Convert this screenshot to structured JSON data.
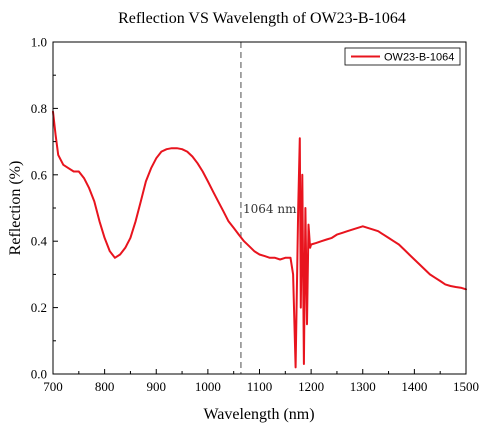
{
  "chart_data": {
    "type": "line",
    "title": "Reflection VS Wavelength of OW23-B-1064",
    "xlabel": "Wavelength (nm)",
    "ylabel": "Reflection (%)",
    "xlim": [
      700,
      1500
    ],
    "ylim": [
      0.0,
      1.0
    ],
    "xticks": [
      700,
      800,
      900,
      1000,
      1100,
      1200,
      1300,
      1400,
      1500
    ],
    "xtick_labels": [
      "700",
      "800",
      "900",
      "1000",
      "1100",
      "1200",
      "1300",
      "1400",
      "1500"
    ],
    "yticks": [
      0.0,
      0.2,
      0.4,
      0.6,
      0.8,
      1.0
    ],
    "ytick_labels": [
      "0.0",
      "0.2",
      "0.4",
      "0.6",
      "0.8",
      "1.0"
    ],
    "grid": false,
    "legend_position": "top-right",
    "reference_line": {
      "x": 1064,
      "style": "dashed",
      "color": "#808080"
    },
    "annotation": {
      "text": "1064 nm",
      "x": 1064,
      "y": 0.5
    },
    "series": [
      {
        "name": "OW23-B-1064",
        "color": "#e8141e",
        "x": [
          700,
          705,
          710,
          720,
          730,
          740,
          750,
          760,
          770,
          780,
          790,
          800,
          810,
          820,
          830,
          840,
          850,
          860,
          870,
          880,
          890,
          900,
          910,
          920,
          930,
          940,
          950,
          960,
          970,
          980,
          990,
          1000,
          1010,
          1020,
          1030,
          1040,
          1050,
          1060,
          1070,
          1080,
          1090,
          1100,
          1110,
          1120,
          1130,
          1140,
          1150,
          1160,
          1165,
          1170,
          1175,
          1178,
          1180,
          1183,
          1186,
          1189,
          1192,
          1195,
          1198,
          1200,
          1210,
          1220,
          1230,
          1240,
          1250,
          1260,
          1270,
          1280,
          1290,
          1300,
          1310,
          1320,
          1330,
          1340,
          1350,
          1360,
          1370,
          1380,
          1390,
          1400,
          1410,
          1420,
          1430,
          1440,
          1450,
          1460,
          1470,
          1480,
          1490,
          1500
        ],
        "y": [
          0.79,
          0.72,
          0.66,
          0.63,
          0.62,
          0.61,
          0.61,
          0.59,
          0.56,
          0.52,
          0.46,
          0.41,
          0.37,
          0.35,
          0.36,
          0.38,
          0.41,
          0.46,
          0.52,
          0.58,
          0.62,
          0.65,
          0.67,
          0.677,
          0.68,
          0.68,
          0.677,
          0.67,
          0.655,
          0.635,
          0.61,
          0.58,
          0.55,
          0.52,
          0.49,
          0.46,
          0.44,
          0.42,
          0.4,
          0.385,
          0.37,
          0.36,
          0.355,
          0.35,
          0.35,
          0.345,
          0.35,
          0.35,
          0.3,
          0.02,
          0.5,
          0.71,
          0.2,
          0.6,
          0.03,
          0.5,
          0.15,
          0.45,
          0.38,
          0.39,
          0.395,
          0.4,
          0.405,
          0.41,
          0.42,
          0.425,
          0.43,
          0.435,
          0.44,
          0.445,
          0.44,
          0.435,
          0.43,
          0.42,
          0.41,
          0.4,
          0.39,
          0.375,
          0.36,
          0.345,
          0.33,
          0.315,
          0.3,
          0.29,
          0.28,
          0.27,
          0.265,
          0.262,
          0.26,
          0.255
        ]
      }
    ]
  }
}
